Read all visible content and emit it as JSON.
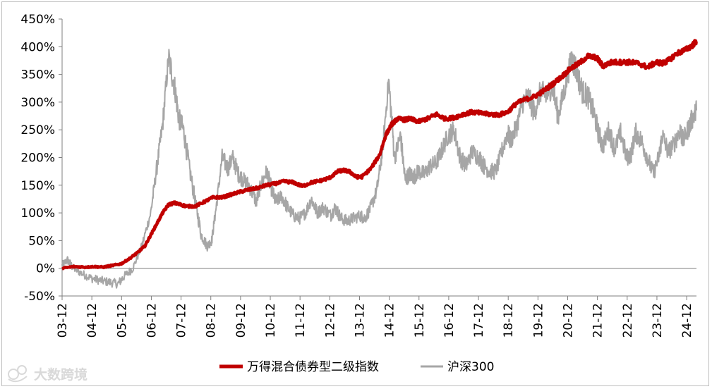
{
  "watermark": {
    "text": "大数跨境"
  },
  "chart_data": {
    "type": "line",
    "ylim": [
      -50,
      450
    ],
    "y_ticks": [
      -50,
      0,
      50,
      100,
      150,
      200,
      250,
      300,
      350,
      400,
      450
    ],
    "y_tick_labels": [
      "-50%",
      "0%",
      "50%",
      "100%",
      "150%",
      "200%",
      "250%",
      "300%",
      "350%",
      "400%",
      "450%"
    ],
    "x_range": [
      2003.92,
      2025.25
    ],
    "x_ticks": [
      2003.92,
      2004.92,
      2005.92,
      2006.92,
      2007.92,
      2008.92,
      2009.92,
      2010.92,
      2011.92,
      2012.92,
      2013.92,
      2014.92,
      2015.92,
      2016.92,
      2017.92,
      2018.92,
      2019.92,
      2020.92,
      2021.92,
      2022.92,
      2023.92,
      2024.92
    ],
    "x_tick_labels": [
      "03-12",
      "04-12",
      "05-12",
      "06-12",
      "07-12",
      "08-12",
      "09-12",
      "10-12",
      "11-12",
      "12-12",
      "13-12",
      "14-12",
      "15-12",
      "16-12",
      "17-12",
      "18-12",
      "19-12",
      "20-12",
      "21-12",
      "22-12",
      "23-12",
      "24-12"
    ],
    "series": [
      {
        "name": "万得混合债券型二级指数",
        "color": "#c00000",
        "x": [
          2003.92,
          2004.3,
          2004.7,
          2005.0,
          2005.3,
          2005.6,
          2005.9,
          2006.2,
          2006.45,
          2006.7,
          2006.9,
          2007.1,
          2007.3,
          2007.5,
          2007.7,
          2007.9,
          2008.1,
          2008.4,
          2008.7,
          2009.0,
          2009.3,
          2009.6,
          2009.9,
          2010.2,
          2010.5,
          2010.8,
          2011.1,
          2011.4,
          2011.7,
          2012.0,
          2012.3,
          2012.6,
          2012.9,
          2013.2,
          2013.4,
          2013.6,
          2013.8,
          2014.0,
          2014.3,
          2014.6,
          2014.8,
          2015.0,
          2015.2,
          2015.45,
          2015.6,
          2015.9,
          2016.2,
          2016.5,
          2016.8,
          2017.1,
          2017.4,
          2017.7,
          2018.0,
          2018.3,
          2018.6,
          2018.9,
          2019.2,
          2019.5,
          2019.8,
          2020.1,
          2020.4,
          2020.7,
          2021.0,
          2021.3,
          2021.6,
          2021.9,
          2022.1,
          2022.4,
          2022.7,
          2023.0,
          2023.3,
          2023.6,
          2023.9,
          2024.1,
          2024.3,
          2024.6,
          2024.9,
          2025.1,
          2025.25
        ],
        "values": [
          0,
          3,
          2,
          3,
          2,
          5,
          8,
          18,
          28,
          40,
          60,
          80,
          100,
          115,
          118,
          115,
          112,
          112,
          120,
          128,
          128,
          133,
          138,
          142,
          145,
          150,
          153,
          157,
          155,
          148,
          155,
          158,
          163,
          175,
          177,
          174,
          165,
          165,
          180,
          205,
          240,
          260,
          270,
          268,
          270,
          265,
          270,
          278,
          270,
          272,
          278,
          282,
          280,
          278,
          277,
          282,
          298,
          305,
          310,
          320,
          332,
          345,
          360,
          370,
          383,
          380,
          365,
          372,
          372,
          372,
          370,
          363,
          372,
          370,
          375,
          388,
          395,
          402,
          410
        ]
      },
      {
        "name": "沪深300",
        "color": "#a6a6a6",
        "x": [
          2003.92,
          2004.1,
          2004.3,
          2004.6,
          2004.9,
          2005.2,
          2005.5,
          2005.8,
          2006.0,
          2006.3,
          2006.6,
          2006.9,
          2007.1,
          2007.3,
          2007.5,
          2007.7,
          2007.85,
          2008.0,
          2008.2,
          2008.4,
          2008.6,
          2008.8,
          2008.95,
          2009.1,
          2009.3,
          2009.5,
          2009.65,
          2009.85,
          2010.0,
          2010.2,
          2010.45,
          2010.6,
          2010.8,
          2010.95,
          2011.1,
          2011.3,
          2011.5,
          2011.7,
          2011.9,
          2012.1,
          2012.3,
          2012.5,
          2012.7,
          2012.95,
          2013.1,
          2013.3,
          2013.5,
          2013.7,
          2013.95,
          2014.1,
          2014.3,
          2014.5,
          2014.7,
          2014.9,
          2015.1,
          2015.3,
          2015.45,
          2015.6,
          2015.75,
          2015.9,
          2016.1,
          2016.3,
          2016.5,
          2016.7,
          2016.9,
          2017.1,
          2017.3,
          2017.5,
          2017.7,
          2017.95,
          2018.1,
          2018.3,
          2018.5,
          2018.7,
          2018.9,
          2019.0,
          2019.2,
          2019.4,
          2019.6,
          2019.8,
          2020.0,
          2020.2,
          2020.4,
          2020.6,
          2020.8,
          2021.05,
          2021.2,
          2021.4,
          2021.6,
          2021.8,
          2021.95,
          2022.1,
          2022.3,
          2022.5,
          2022.7,
          2022.9,
          2023.05,
          2023.2,
          2023.4,
          2023.6,
          2023.8,
          2024.0,
          2024.1,
          2024.3,
          2024.5,
          2024.7,
          2024.8,
          2025.0,
          2025.1,
          2025.25
        ],
        "values": [
          5,
          15,
          0,
          -10,
          -18,
          -22,
          -25,
          -28,
          -15,
          0,
          40,
          100,
          180,
          260,
          380,
          330,
          270,
          250,
          180,
          120,
          60,
          40,
          50,
          110,
          200,
          180,
          200,
          170,
          160,
          150,
          120,
          150,
          175,
          145,
          120,
          130,
          110,
          95,
          90,
          100,
          125,
          100,
          110,
          95,
          110,
          90,
          85,
          90,
          95,
          90,
          110,
          140,
          215,
          340,
          200,
          240,
          160,
          170,
          165,
          175,
          170,
          185,
          190,
          215,
          240,
          250,
          200,
          185,
          210,
          200,
          185,
          175,
          175,
          210,
          245,
          230,
          255,
          300,
          310,
          280,
          320,
          310,
          330,
          275,
          320,
          380,
          360,
          320,
          310,
          280,
          245,
          220,
          250,
          215,
          245,
          200,
          205,
          245,
          230,
          200,
          170,
          205,
          240,
          210,
          225,
          250,
          230,
          255,
          270,
          285
        ]
      }
    ]
  }
}
